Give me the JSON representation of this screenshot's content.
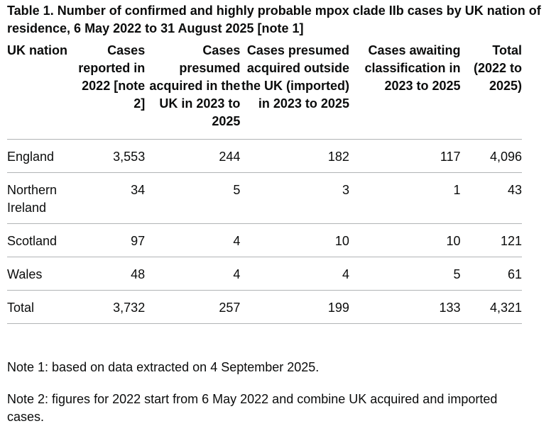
{
  "caption": "Table 1. Number of confirmed and highly probable mpox clade IIb cases by UK nation of residence, 6 May 2022 to 31 August 2025 [note 1]",
  "table": {
    "headers": [
      "UK nation",
      "Cases reported in 2022 [note 2]",
      "Cases presumed acquired in the UK in 2023 to 2025",
      "Cases presumed acquired outside the UK (imported) in 2023 to 2025",
      "Cases awaiting classification in 2023 to 2025",
      "Total (2022 to 2025)"
    ],
    "rows": [
      [
        "England",
        "3,553",
        "244",
        "182",
        "117",
        "4,096"
      ],
      [
        "Northern Ireland",
        "34",
        "5",
        "3",
        "1",
        "43"
      ],
      [
        "Scotland",
        "97",
        "4",
        "10",
        "10",
        "121"
      ],
      [
        "Wales",
        "48",
        "4",
        "4",
        "5",
        "61"
      ],
      [
        "Total",
        "3,732",
        "257",
        "199",
        "133",
        "4,321"
      ]
    ]
  },
  "notes": [
    "Note 1: based on data extracted on 4 September 2025.",
    "Note 2: figures for 2022 start from 6 May 2022 and combine UK acquired and imported cases."
  ]
}
